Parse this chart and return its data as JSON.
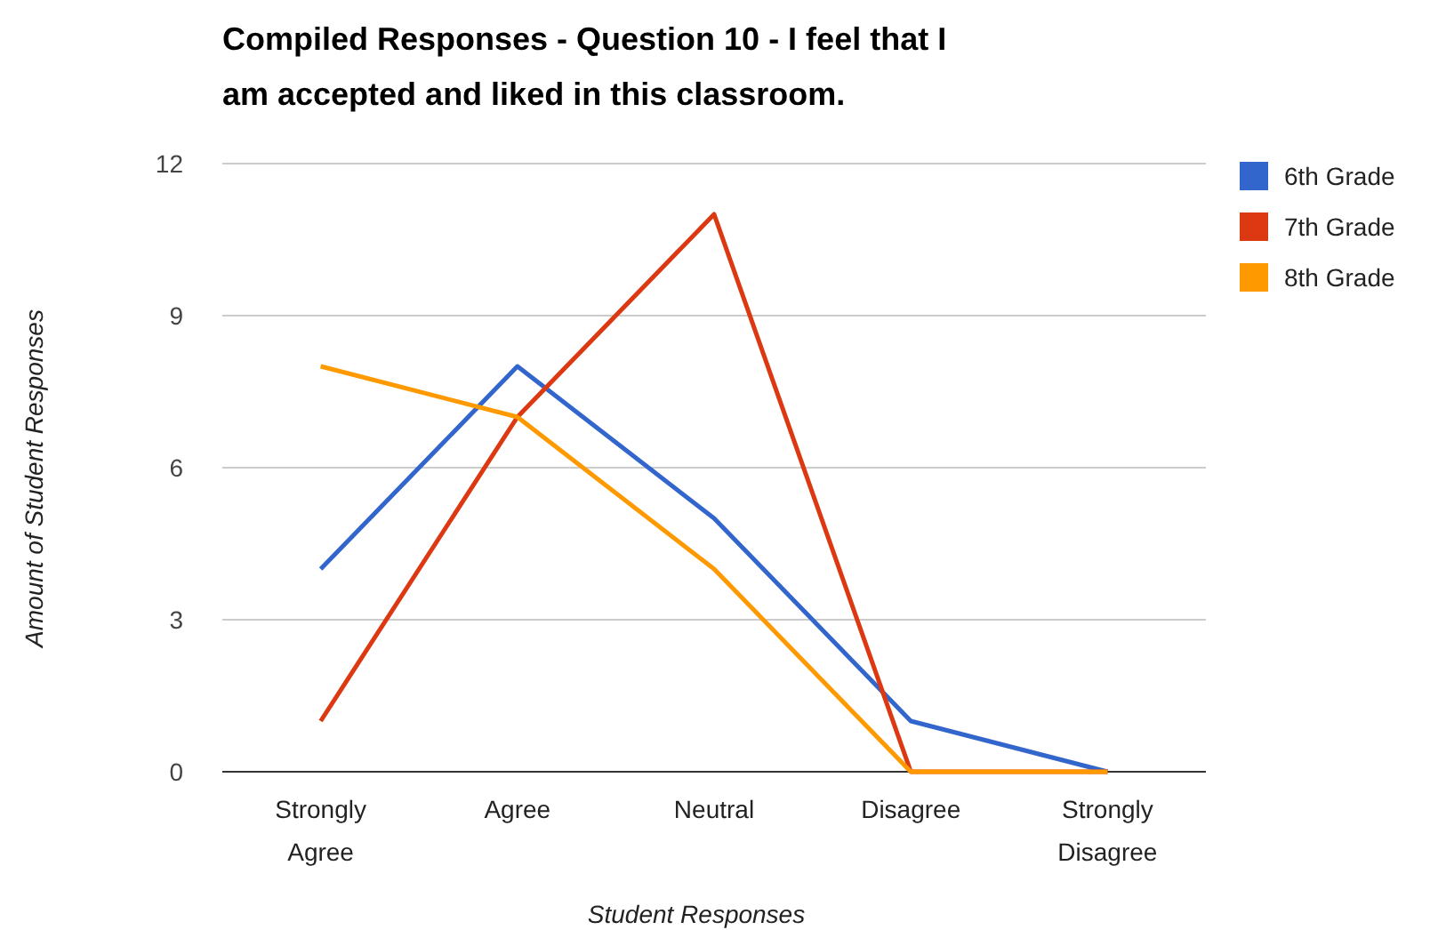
{
  "chart_data": {
    "type": "line",
    "title": "Compiled Responses - Question 10 - I feel that I am accepted and liked in this classroom.",
    "xlabel": "Student Responses",
    "ylabel": "Amount of Student Responses",
    "categories": [
      "Strongly Agree",
      "Agree",
      "Neutral",
      "Disagree",
      "Strongly Disagree"
    ],
    "series": [
      {
        "name": "6th Grade",
        "color": "#3366cc",
        "values": [
          4,
          8,
          5,
          1,
          0
        ]
      },
      {
        "name": "7th Grade",
        "color": "#dc3912",
        "values": [
          1,
          7,
          11,
          0,
          0
        ]
      },
      {
        "name": "8th Grade",
        "color": "#ff9900",
        "values": [
          8,
          7,
          4,
          0,
          0
        ]
      }
    ],
    "ylim": [
      0,
      12
    ],
    "yticks": [
      0,
      3,
      6,
      9,
      12
    ],
    "grid": "y",
    "legend": "right",
    "marker": "none"
  }
}
